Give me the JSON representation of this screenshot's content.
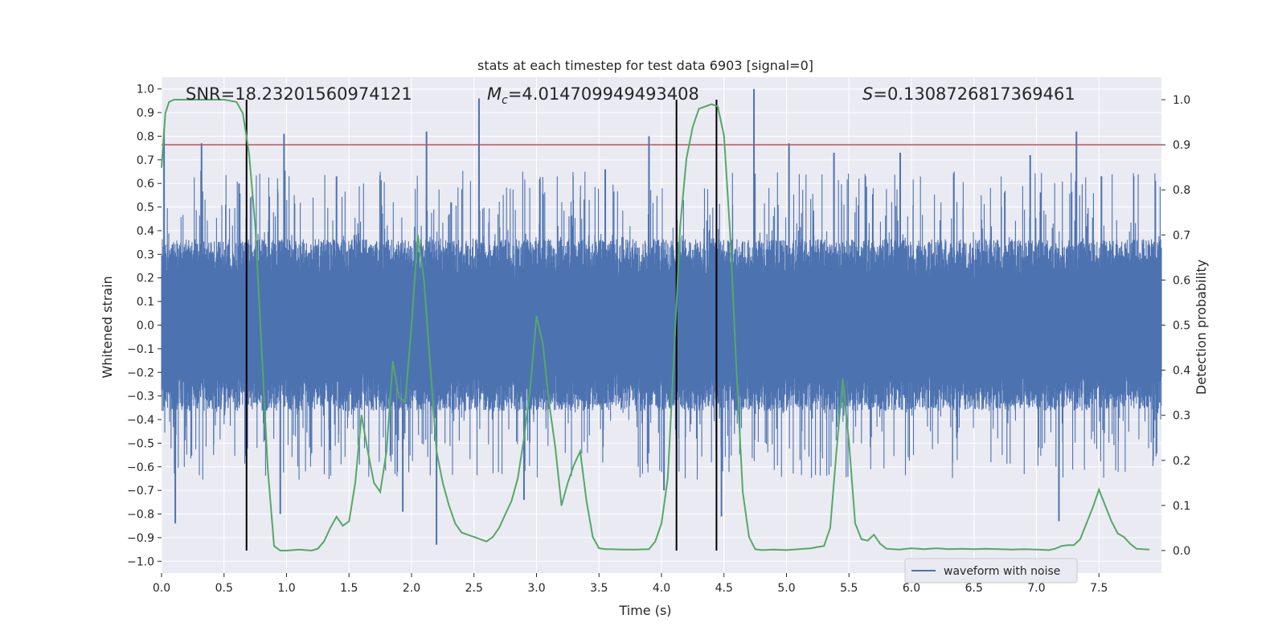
{
  "chart_data": {
    "type": "line",
    "title": "stats at each timestep for test data 6903 [signal=0]",
    "xlabel": "Time (s)",
    "ylabel": "Whitened strain",
    "y2label": "Detection probability",
    "xlim": [
      0.0,
      8.0
    ],
    "ylim": [
      -1.05,
      1.05
    ],
    "y2lim": [
      -0.05,
      1.05
    ],
    "xticks": [
      0.0,
      0.5,
      1.0,
      1.5,
      2.0,
      2.5,
      3.0,
      3.5,
      4.0,
      4.5,
      5.0,
      5.5,
      6.0,
      6.5,
      7.0,
      7.5
    ],
    "yticks": [
      -1.0,
      -0.9,
      -0.8,
      -0.7,
      -0.6,
      -0.5,
      -0.4,
      -0.3,
      -0.2,
      -0.1,
      0.0,
      0.1,
      0.2,
      0.3,
      0.4,
      0.5,
      0.6,
      0.7,
      0.8,
      0.9,
      1.0
    ],
    "y2ticks": [
      0.0,
      0.1,
      0.2,
      0.3,
      0.4,
      0.5,
      0.6,
      0.7,
      0.8,
      0.9,
      1.0
    ],
    "grid": true,
    "legend_position": "bottom-right",
    "colors": {
      "waveform": "#4c72b0",
      "probability": "#55a868",
      "threshold": "#c44e52",
      "markers": "#000000",
      "background": "#eaeaf2",
      "grid": "#ffffff"
    },
    "stats": {
      "snr": "SNR=18.23201560974121",
      "mc_symbol": "M",
      "mc_subscript": "c",
      "mc_value": "=4.014709949493408",
      "s_symbol": "S",
      "s_value": "=0.1308726817369461"
    },
    "series": [
      {
        "name": "waveform with noise",
        "axis": "left",
        "style": "dense noise waveform",
        "sample_step": 0.002,
        "typical_amplitude": 0.28,
        "peaks": [
          {
            "x": 0.02,
            "y": 0.83
          },
          {
            "x": 0.11,
            "y": -0.84
          },
          {
            "x": 0.32,
            "y": 0.77
          },
          {
            "x": 0.62,
            "y": 0.6
          },
          {
            "x": 0.95,
            "y": -0.8
          },
          {
            "x": 0.98,
            "y": 0.81
          },
          {
            "x": 1.4,
            "y": 0.63
          },
          {
            "x": 1.93,
            "y": -0.79
          },
          {
            "x": 2.12,
            "y": 0.82
          },
          {
            "x": 2.2,
            "y": -0.93
          },
          {
            "x": 2.54,
            "y": 0.96
          },
          {
            "x": 2.9,
            "y": -0.74
          },
          {
            "x": 3.55,
            "y": 0.66
          },
          {
            "x": 3.9,
            "y": 0.8
          },
          {
            "x": 4.02,
            "y": -0.7
          },
          {
            "x": 4.48,
            "y": -0.81
          },
          {
            "x": 4.74,
            "y": 1.0
          },
          {
            "x": 5.02,
            "y": 0.77
          },
          {
            "x": 5.38,
            "y": 0.73
          },
          {
            "x": 5.91,
            "y": 0.73
          },
          {
            "x": 6.95,
            "y": 0.72
          },
          {
            "x": 7.18,
            "y": -0.83
          },
          {
            "x": 7.32,
            "y": 0.82
          },
          {
            "x": 7.52,
            "y": 0.63
          }
        ]
      },
      {
        "name": "",
        "axis": "right",
        "x": [
          0.0,
          0.03,
          0.06,
          0.1,
          0.2,
          0.3,
          0.4,
          0.5,
          0.6,
          0.65,
          0.7,
          0.75,
          0.8,
          0.85,
          0.9,
          0.95,
          1.0,
          1.1,
          1.2,
          1.25,
          1.3,
          1.35,
          1.4,
          1.45,
          1.5,
          1.55,
          1.6,
          1.65,
          1.7,
          1.75,
          1.8,
          1.85,
          1.9,
          1.95,
          2.0,
          2.05,
          2.1,
          2.15,
          2.2,
          2.25,
          2.3,
          2.35,
          2.4,
          2.45,
          2.5,
          2.55,
          2.6,
          2.65,
          2.7,
          2.75,
          2.8,
          2.85,
          2.9,
          2.95,
          3.0,
          3.05,
          3.1,
          3.15,
          3.2,
          3.25,
          3.3,
          3.35,
          3.4,
          3.45,
          3.5,
          3.55,
          3.6,
          3.7,
          3.8,
          3.9,
          3.95,
          4.0,
          4.05,
          4.1,
          4.15,
          4.2,
          4.25,
          4.3,
          4.35,
          4.4,
          4.45,
          4.5,
          4.55,
          4.6,
          4.65,
          4.7,
          4.75,
          4.8,
          4.9,
          5.0,
          5.1,
          5.2,
          5.25,
          5.3,
          5.35,
          5.4,
          5.45,
          5.5,
          5.55,
          5.6,
          5.65,
          5.7,
          5.75,
          5.8,
          5.9,
          6.0,
          6.1,
          6.2,
          6.3,
          6.4,
          6.5,
          6.6,
          6.7,
          6.8,
          6.9,
          7.0,
          7.1,
          7.15,
          7.2,
          7.25,
          7.3,
          7.35,
          7.4,
          7.45,
          7.5,
          7.55,
          7.6,
          7.65,
          7.7,
          7.75,
          7.8,
          7.9
        ],
        "values": [
          0.85,
          0.97,
          0.995,
          1.0,
          1.0,
          1.0,
          1.0,
          1.0,
          0.995,
          0.97,
          0.88,
          0.72,
          0.45,
          0.18,
          0.01,
          0.0,
          0.0,
          0.002,
          0.0,
          0.004,
          0.02,
          0.05,
          0.075,
          0.055,
          0.065,
          0.15,
          0.3,
          0.22,
          0.15,
          0.13,
          0.22,
          0.42,
          0.34,
          0.33,
          0.5,
          0.7,
          0.6,
          0.41,
          0.22,
          0.15,
          0.1,
          0.06,
          0.04,
          0.035,
          0.03,
          0.025,
          0.02,
          0.03,
          0.05,
          0.08,
          0.11,
          0.16,
          0.25,
          0.36,
          0.52,
          0.46,
          0.33,
          0.23,
          0.1,
          0.15,
          0.19,
          0.22,
          0.11,
          0.03,
          0.005,
          0.003,
          0.003,
          0.002,
          0.002,
          0.003,
          0.02,
          0.06,
          0.16,
          0.43,
          0.72,
          0.87,
          0.94,
          0.98,
          0.985,
          0.99,
          0.985,
          0.92,
          0.7,
          0.4,
          0.13,
          0.03,
          0.003,
          0.001,
          0.002,
          0.001,
          0.003,
          0.005,
          0.008,
          0.01,
          0.05,
          0.22,
          0.38,
          0.24,
          0.06,
          0.025,
          0.022,
          0.035,
          0.015,
          0.004,
          0.002,
          0.005,
          0.003,
          0.005,
          0.003,
          0.004,
          0.003,
          0.004,
          0.003,
          0.002,
          0.003,
          0.002,
          0.001,
          0.004,
          0.01,
          0.012,
          0.012,
          0.025,
          0.06,
          0.095,
          0.135,
          0.1,
          0.065,
          0.038,
          0.03,
          0.015,
          0.004,
          0.002
        ]
      }
    ],
    "threshold_line": {
      "axis": "right",
      "y": 0.9
    },
    "vertical_markers": {
      "x": [
        0.68,
        4.12,
        4.44
      ],
      "y2_range": [
        0.0,
        1.0
      ]
    }
  }
}
